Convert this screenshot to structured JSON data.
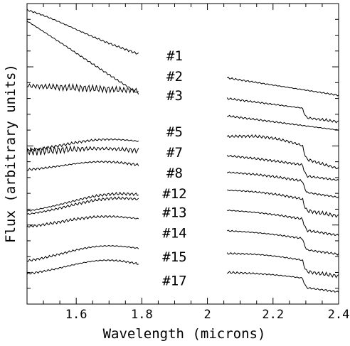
{
  "chart_data": {
    "type": "line",
    "title": "",
    "xlabel": "Wavelength (microns)",
    "ylabel": "Flux (arbitrary units)",
    "xlim": [
      1.45,
      2.4
    ],
    "ylim": [
      0,
      19
    ],
    "xticks": [
      1.6,
      1.8,
      2.0,
      2.2,
      2.4
    ],
    "xtick_labels": [
      "1.6",
      "1.8",
      "2",
      "2.2",
      "2.4"
    ],
    "grid": false,
    "legend": "none",
    "label_x": 1.9,
    "series": [
      {
        "name": "#1",
        "label_y": 15.4,
        "h": {
          "start": 18.1,
          "end": 15.8,
          "peak": 18.6,
          "peakAt": 1.47,
          "wig": 0.05
        },
        "k": {
          "start": 14.3,
          "end": 13.2,
          "peak": 14.3,
          "peakAt": 2.06,
          "wig": 0.04
        }
      },
      {
        "name": "#2",
        "label_y": 14.1,
        "h": {
          "start": 17.8,
          "end": 13.3,
          "peak": 17.9,
          "peakAt": 1.46,
          "wig": 0.04
        },
        "k": {
          "start": 13.0,
          "end": 12.1,
          "peak": 13.0,
          "peakAt": 2.06,
          "wig": 0.04,
          "co": 0.5
        }
      },
      {
        "name": "#3",
        "label_y": 12.9,
        "h": {
          "start": 13.8,
          "end": 13.5,
          "peak": 13.8,
          "peakAt": 1.46,
          "wig": 0.15
        },
        "k": {
          "start": 11.9,
          "end": 11.0,
          "peak": 11.9,
          "peakAt": 2.06,
          "wig": 0.04
        }
      },
      {
        "name": "#5",
        "label_y": 10.6,
        "h": {
          "start": 9.6,
          "end": 9.9,
          "peak": 10.5,
          "peakAt": 1.68,
          "wig": 0.06
        },
        "k": {
          "start": 10.2,
          "end": 9.2,
          "peak": 10.9,
          "peakAt": 2.19,
          "wig": 0.06,
          "co": 0.7
        }
      },
      {
        "name": "#7",
        "label_y": 9.3,
        "h": {
          "start": 9.6,
          "end": 9.5,
          "peak": 9.9,
          "peakAt": 1.68,
          "wig": 0.18
        },
        "k": {
          "start": 9.3,
          "end": 8.5,
          "peak": 9.4,
          "peakAt": 2.14,
          "wig": 0.05,
          "co": 0.6
        }
      },
      {
        "name": "#8",
        "label_y": 8.0,
        "h": {
          "start": 8.4,
          "end": 8.4,
          "peak": 9.0,
          "peakAt": 1.68,
          "wig": 0.06
        },
        "k": {
          "start": 8.2,
          "end": 7.4,
          "peak": 8.4,
          "peakAt": 2.17,
          "wig": 0.05,
          "co": 0.6
        }
      },
      {
        "name": "#12",
        "label_y": 6.7,
        "h": {
          "start": 5.8,
          "end": 6.4,
          "peak": 7.1,
          "peakAt": 1.7,
          "wig": 0.06
        },
        "k": {
          "start": 7.0,
          "end": 6.2,
          "peak": 7.3,
          "peakAt": 2.17,
          "wig": 0.05,
          "co": 0.6
        }
      },
      {
        "name": "#13",
        "label_y": 5.5,
        "h": {
          "start": 5.6,
          "end": 6.1,
          "peak": 6.8,
          "peakAt": 1.7,
          "wig": 0.06
        },
        "k": {
          "start": 5.8,
          "end": 5.0,
          "peak": 6.0,
          "peakAt": 2.17,
          "wig": 0.05,
          "co": 0.6
        }
      },
      {
        "name": "#14",
        "label_y": 4.2,
        "h": {
          "start": 4.8,
          "end": 5.0,
          "peak": 5.6,
          "peakAt": 1.68,
          "wig": 0.06
        },
        "k": {
          "start": 4.5,
          "end": 3.8,
          "peak": 4.7,
          "peakAt": 2.17,
          "wig": 0.05,
          "co": 0.6
        }
      },
      {
        "name": "#15",
        "label_y": 2.7,
        "h": {
          "start": 2.6,
          "end": 3.0,
          "peak": 3.8,
          "peakAt": 1.68,
          "wig": 0.05
        },
        "k": {
          "start": 3.0,
          "end": 2.4,
          "peak": 3.3,
          "peakAt": 2.17,
          "wig": 0.05,
          "co": 0.6
        }
      },
      {
        "name": "#17",
        "label_y": 1.2,
        "h": {
          "start": 1.8,
          "end": 1.9,
          "peak": 2.8,
          "peakAt": 1.69,
          "wig": 0.05
        },
        "k": {
          "start": 1.9,
          "end": 1.3,
          "peak": 2.1,
          "peakAt": 2.2,
          "wig": 0.05,
          "co": 0.5
        }
      }
    ]
  }
}
